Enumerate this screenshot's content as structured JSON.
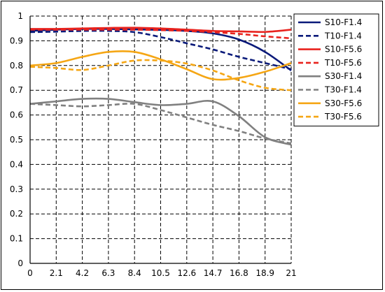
{
  "chart_data": {
    "type": "line",
    "title": "",
    "xlabel": "",
    "ylabel": "",
    "xlim": [
      0,
      21
    ],
    "ylim": [
      0,
      1
    ],
    "x_ticks": [
      "0",
      "2.1",
      "4.2",
      "6.3",
      "8.4",
      "10.5",
      "12.6",
      "14.7",
      "16.8",
      "18.9",
      "21"
    ],
    "y_ticks": [
      "0",
      "0.1",
      "0.2",
      "0.3",
      "0.4",
      "0.5",
      "0.6",
      "0.7",
      "0.8",
      "0.9",
      "1"
    ],
    "grid": true,
    "legend_position": "right",
    "series": [
      {
        "name": "S10-F1.4",
        "color": "#0a1a7a",
        "dash": false,
        "x": [
          0,
          2.1,
          4.2,
          6.3,
          8.4,
          10.5,
          12.6,
          14.7,
          16.8,
          18.9,
          21
        ],
        "values": [
          0.94,
          0.945,
          0.948,
          0.948,
          0.946,
          0.944,
          0.94,
          0.93,
          0.905,
          0.855,
          0.78
        ]
      },
      {
        "name": "T10-F1.4",
        "color": "#0a1a7a",
        "dash": true,
        "x": [
          0,
          2.1,
          4.2,
          6.3,
          8.4,
          10.5,
          12.6,
          14.7,
          16.8,
          18.9,
          21
        ],
        "values": [
          0.935,
          0.937,
          0.94,
          0.94,
          0.935,
          0.915,
          0.89,
          0.865,
          0.835,
          0.81,
          0.785
        ]
      },
      {
        "name": "S10-F5.6",
        "color": "#e8231e",
        "dash": false,
        "x": [
          0,
          2.1,
          4.2,
          6.3,
          8.4,
          10.5,
          12.6,
          14.7,
          16.8,
          18.9,
          21
        ],
        "values": [
          0.948,
          0.948,
          0.95,
          0.952,
          0.953,
          0.95,
          0.945,
          0.94,
          0.938,
          0.936,
          0.945
        ]
      },
      {
        "name": "T10-F5.6",
        "color": "#e8231e",
        "dash": true,
        "x": [
          0,
          2.1,
          4.2,
          6.3,
          8.4,
          10.5,
          12.6,
          14.7,
          16.8,
          18.9,
          21
        ],
        "values": [
          0.945,
          0.945,
          0.945,
          0.945,
          0.945,
          0.943,
          0.94,
          0.935,
          0.928,
          0.918,
          0.91
        ]
      },
      {
        "name": "S30-F1.4",
        "color": "#808080",
        "dash": false,
        "x": [
          0,
          2.1,
          4.2,
          6.3,
          8.4,
          10.5,
          12.6,
          14.7,
          16.8,
          18.9,
          21
        ],
        "values": [
          0.645,
          0.655,
          0.665,
          0.665,
          0.652,
          0.64,
          0.645,
          0.655,
          0.595,
          0.51,
          0.48
        ]
      },
      {
        "name": "T30-F1.4",
        "color": "#808080",
        "dash": true,
        "x": [
          0,
          2.1,
          4.2,
          6.3,
          8.4,
          10.5,
          12.6,
          14.7,
          16.8,
          18.9,
          21
        ],
        "values": [
          0.645,
          0.64,
          0.635,
          0.64,
          0.645,
          0.62,
          0.59,
          0.56,
          0.535,
          0.505,
          0.485
        ]
      },
      {
        "name": "S30-F5.6",
        "color": "#f5a614",
        "dash": false,
        "x": [
          0,
          2.1,
          4.2,
          6.3,
          8.4,
          10.5,
          12.6,
          14.7,
          16.8,
          18.9,
          21
        ],
        "values": [
          0.8,
          0.81,
          0.835,
          0.855,
          0.855,
          0.825,
          0.785,
          0.745,
          0.75,
          0.775,
          0.81
        ]
      },
      {
        "name": "T30-F5.6",
        "color": "#f5a614",
        "dash": true,
        "x": [
          0,
          2.1,
          4.2,
          6.3,
          8.4,
          10.5,
          12.6,
          14.7,
          16.8,
          18.9,
          21
        ],
        "values": [
          0.795,
          0.79,
          0.782,
          0.8,
          0.82,
          0.82,
          0.808,
          0.78,
          0.74,
          0.71,
          0.7
        ]
      }
    ]
  }
}
